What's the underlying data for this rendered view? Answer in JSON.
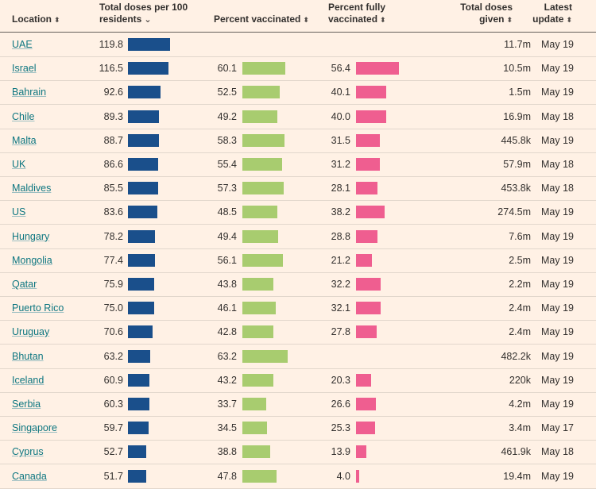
{
  "headers": {
    "location": "Location",
    "doses_line1": "Total doses per 100",
    "doses_line2": "residents",
    "vacc": "Percent vaccinated",
    "full_line1": "Percent fully",
    "full_line2": "vaccinated",
    "total_line1": "Total doses",
    "total_line2": "given",
    "update_line1": "Latest",
    "update_line2": "update",
    "sort_both": "⬍",
    "sort_down": "⌄"
  },
  "colors": {
    "doses": "#1a4f8b",
    "vacc": "#a8cc6f",
    "full": "#ef5e90"
  },
  "chart_data": {
    "type": "table",
    "columns": [
      "Location",
      "Total doses per 100 residents",
      "Percent vaccinated",
      "Percent fully vaccinated",
      "Total doses given",
      "Latest update"
    ],
    "sorted_by": "Total doses per 100 residents",
    "rows": [
      {
        "location": "UAE",
        "doses": "119.8",
        "vacc": "",
        "full": "",
        "total": "11.7m",
        "update": "May 19"
      },
      {
        "location": "Israel",
        "doses": "116.5",
        "vacc": "60.1",
        "full": "56.4",
        "total": "10.5m",
        "update": "May 19"
      },
      {
        "location": "Bahrain",
        "doses": "92.6",
        "vacc": "52.5",
        "full": "40.1",
        "total": "1.5m",
        "update": "May 19"
      },
      {
        "location": "Chile",
        "doses": "89.3",
        "vacc": "49.2",
        "full": "40.0",
        "total": "16.9m",
        "update": "May 18"
      },
      {
        "location": "Malta",
        "doses": "88.7",
        "vacc": "58.3",
        "full": "31.5",
        "total": "445.8k",
        "update": "May 19"
      },
      {
        "location": "UK",
        "doses": "86.6",
        "vacc": "55.4",
        "full": "31.2",
        "total": "57.9m",
        "update": "May 18"
      },
      {
        "location": "Maldives",
        "doses": "85.5",
        "vacc": "57.3",
        "full": "28.1",
        "total": "453.8k",
        "update": "May 18"
      },
      {
        "location": "US",
        "doses": "83.6",
        "vacc": "48.5",
        "full": "38.2",
        "total": "274.5m",
        "update": "May 19"
      },
      {
        "location": "Hungary",
        "doses": "78.2",
        "vacc": "49.4",
        "full": "28.8",
        "total": "7.6m",
        "update": "May 19"
      },
      {
        "location": "Mongolia",
        "doses": "77.4",
        "vacc": "56.1",
        "full": "21.2",
        "total": "2.5m",
        "update": "May 19"
      },
      {
        "location": "Qatar",
        "doses": "75.9",
        "vacc": "43.8",
        "full": "32.2",
        "total": "2.2m",
        "update": "May 19"
      },
      {
        "location": "Puerto Rico",
        "doses": "75.0",
        "vacc": "46.1",
        "full": "32.1",
        "total": "2.4m",
        "update": "May 19"
      },
      {
        "location": "Uruguay",
        "doses": "70.6",
        "vacc": "42.8",
        "full": "27.8",
        "total": "2.4m",
        "update": "May 19"
      },
      {
        "location": "Bhutan",
        "doses": "63.2",
        "vacc": "63.2",
        "full": "",
        "total": "482.2k",
        "update": "May 19"
      },
      {
        "location": "Iceland",
        "doses": "60.9",
        "vacc": "43.2",
        "full": "20.3",
        "total": "220k",
        "update": "May 19"
      },
      {
        "location": "Serbia",
        "doses": "60.3",
        "vacc": "33.7",
        "full": "26.6",
        "total": "4.2m",
        "update": "May 19"
      },
      {
        "location": "Singapore",
        "doses": "59.7",
        "vacc": "34.5",
        "full": "25.3",
        "total": "3.4m",
        "update": "May 17"
      },
      {
        "location": "Cyprus",
        "doses": "52.7",
        "vacc": "38.8",
        "full": "13.9",
        "total": "461.9k",
        "update": "May 18"
      },
      {
        "location": "Canada",
        "doses": "51.7",
        "vacc": "47.8",
        "full": "4.0",
        "total": "19.4m",
        "update": "May 19"
      }
    ]
  }
}
